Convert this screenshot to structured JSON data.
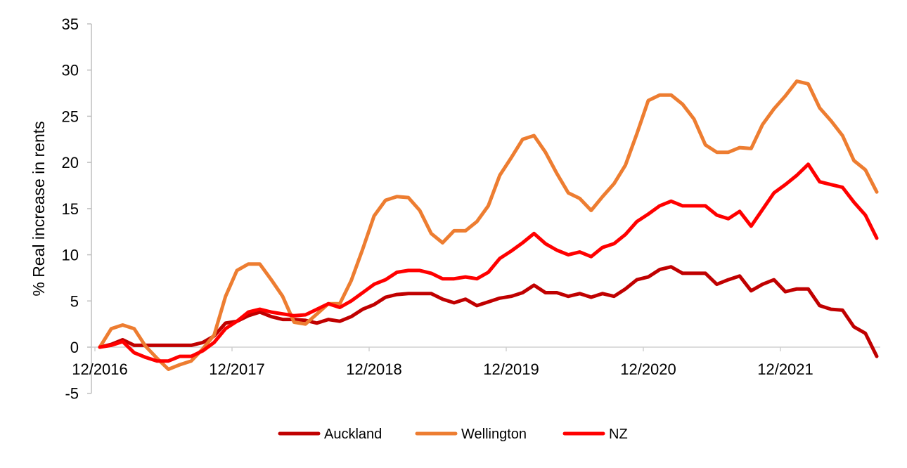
{
  "chart_data": {
    "type": "line",
    "title": "",
    "xlabel": "",
    "ylabel": "% Real increase in rents",
    "ylim": [
      -5,
      35
    ],
    "yticks": [
      -5,
      0,
      5,
      10,
      15,
      20,
      25,
      30,
      35
    ],
    "x_start": "12/2016",
    "x_end": "8/2022",
    "x_interval": "monthly",
    "x_tick_labels": [
      "12/2016",
      "12/2017",
      "12/2018",
      "12/2019",
      "12/2020",
      "12/2021"
    ],
    "grid": false,
    "legend_position": "bottom",
    "series": [
      {
        "name": "Auckland",
        "color": "#C00000",
        "values": [
          0,
          0.3,
          0.8,
          0.2,
          0.2,
          0.2,
          0.2,
          0.2,
          0.2,
          0.5,
          1.2,
          2.6,
          2.8,
          3.4,
          3.8,
          3.3,
          3.0,
          3.0,
          2.9,
          2.6,
          3.0,
          2.8,
          3.3,
          4.1,
          4.6,
          5.4,
          5.7,
          5.8,
          5.8,
          5.8,
          5.2,
          4.8,
          5.2,
          4.5,
          4.9,
          5.3,
          5.5,
          5.9,
          6.7,
          5.9,
          5.9,
          5.5,
          5.8,
          5.4,
          5.8,
          5.5,
          6.3,
          7.3,
          7.6,
          8.4,
          8.7,
          8.0,
          8.0,
          8.0,
          6.8,
          7.3,
          7.7,
          6.1,
          6.8,
          7.3,
          6.0,
          6.3,
          6.3,
          4.5,
          4.1,
          4.0,
          2.2,
          1.5,
          -1.0
        ]
      },
      {
        "name": "Wellington",
        "color": "#ED7D31",
        "values": [
          0,
          2.0,
          2.4,
          2.0,
          0.1,
          -1.2,
          -2.4,
          -1.9,
          -1.5,
          -0.2,
          1.3,
          5.5,
          8.3,
          9.0,
          9.0,
          7.3,
          5.5,
          2.7,
          2.5,
          3.6,
          4.7,
          4.7,
          7.2,
          10.6,
          14.2,
          15.9,
          16.3,
          16.2,
          14.8,
          12.3,
          11.3,
          12.6,
          12.6,
          13.6,
          15.3,
          18.6,
          20.5,
          22.5,
          22.9,
          21.1,
          18.8,
          16.7,
          16.1,
          14.8,
          16.3,
          17.7,
          19.7,
          23.1,
          26.7,
          27.3,
          27.3,
          26.3,
          24.7,
          21.9,
          21.1,
          21.1,
          21.6,
          21.5,
          24.1,
          25.8,
          27.2,
          28.8,
          28.5,
          25.9,
          24.5,
          22.9,
          20.2,
          19.2,
          16.8
        ]
      },
      {
        "name": "NZ",
        "color": "#FF0000",
        "values": [
          0,
          0.2,
          0.6,
          -0.6,
          -1.1,
          -1.5,
          -1.5,
          -1.0,
          -1.0,
          -0.4,
          0.5,
          2.0,
          2.8,
          3.8,
          4.1,
          3.8,
          3.6,
          3.4,
          3.5,
          4.1,
          4.7,
          4.3,
          5.0,
          5.9,
          6.8,
          7.3,
          8.1,
          8.3,
          8.3,
          8.0,
          7.4,
          7.4,
          7.6,
          7.4,
          8.1,
          9.6,
          10.4,
          11.3,
          12.3,
          11.2,
          10.5,
          10.0,
          10.3,
          9.8,
          10.8,
          11.2,
          12.2,
          13.6,
          14.4,
          15.3,
          15.8,
          15.3,
          15.3,
          15.3,
          14.3,
          13.9,
          14.7,
          13.1,
          14.9,
          16.7,
          17.6,
          18.6,
          19.8,
          17.9,
          17.6,
          17.3,
          15.7,
          14.3,
          11.8
        ]
      }
    ]
  }
}
